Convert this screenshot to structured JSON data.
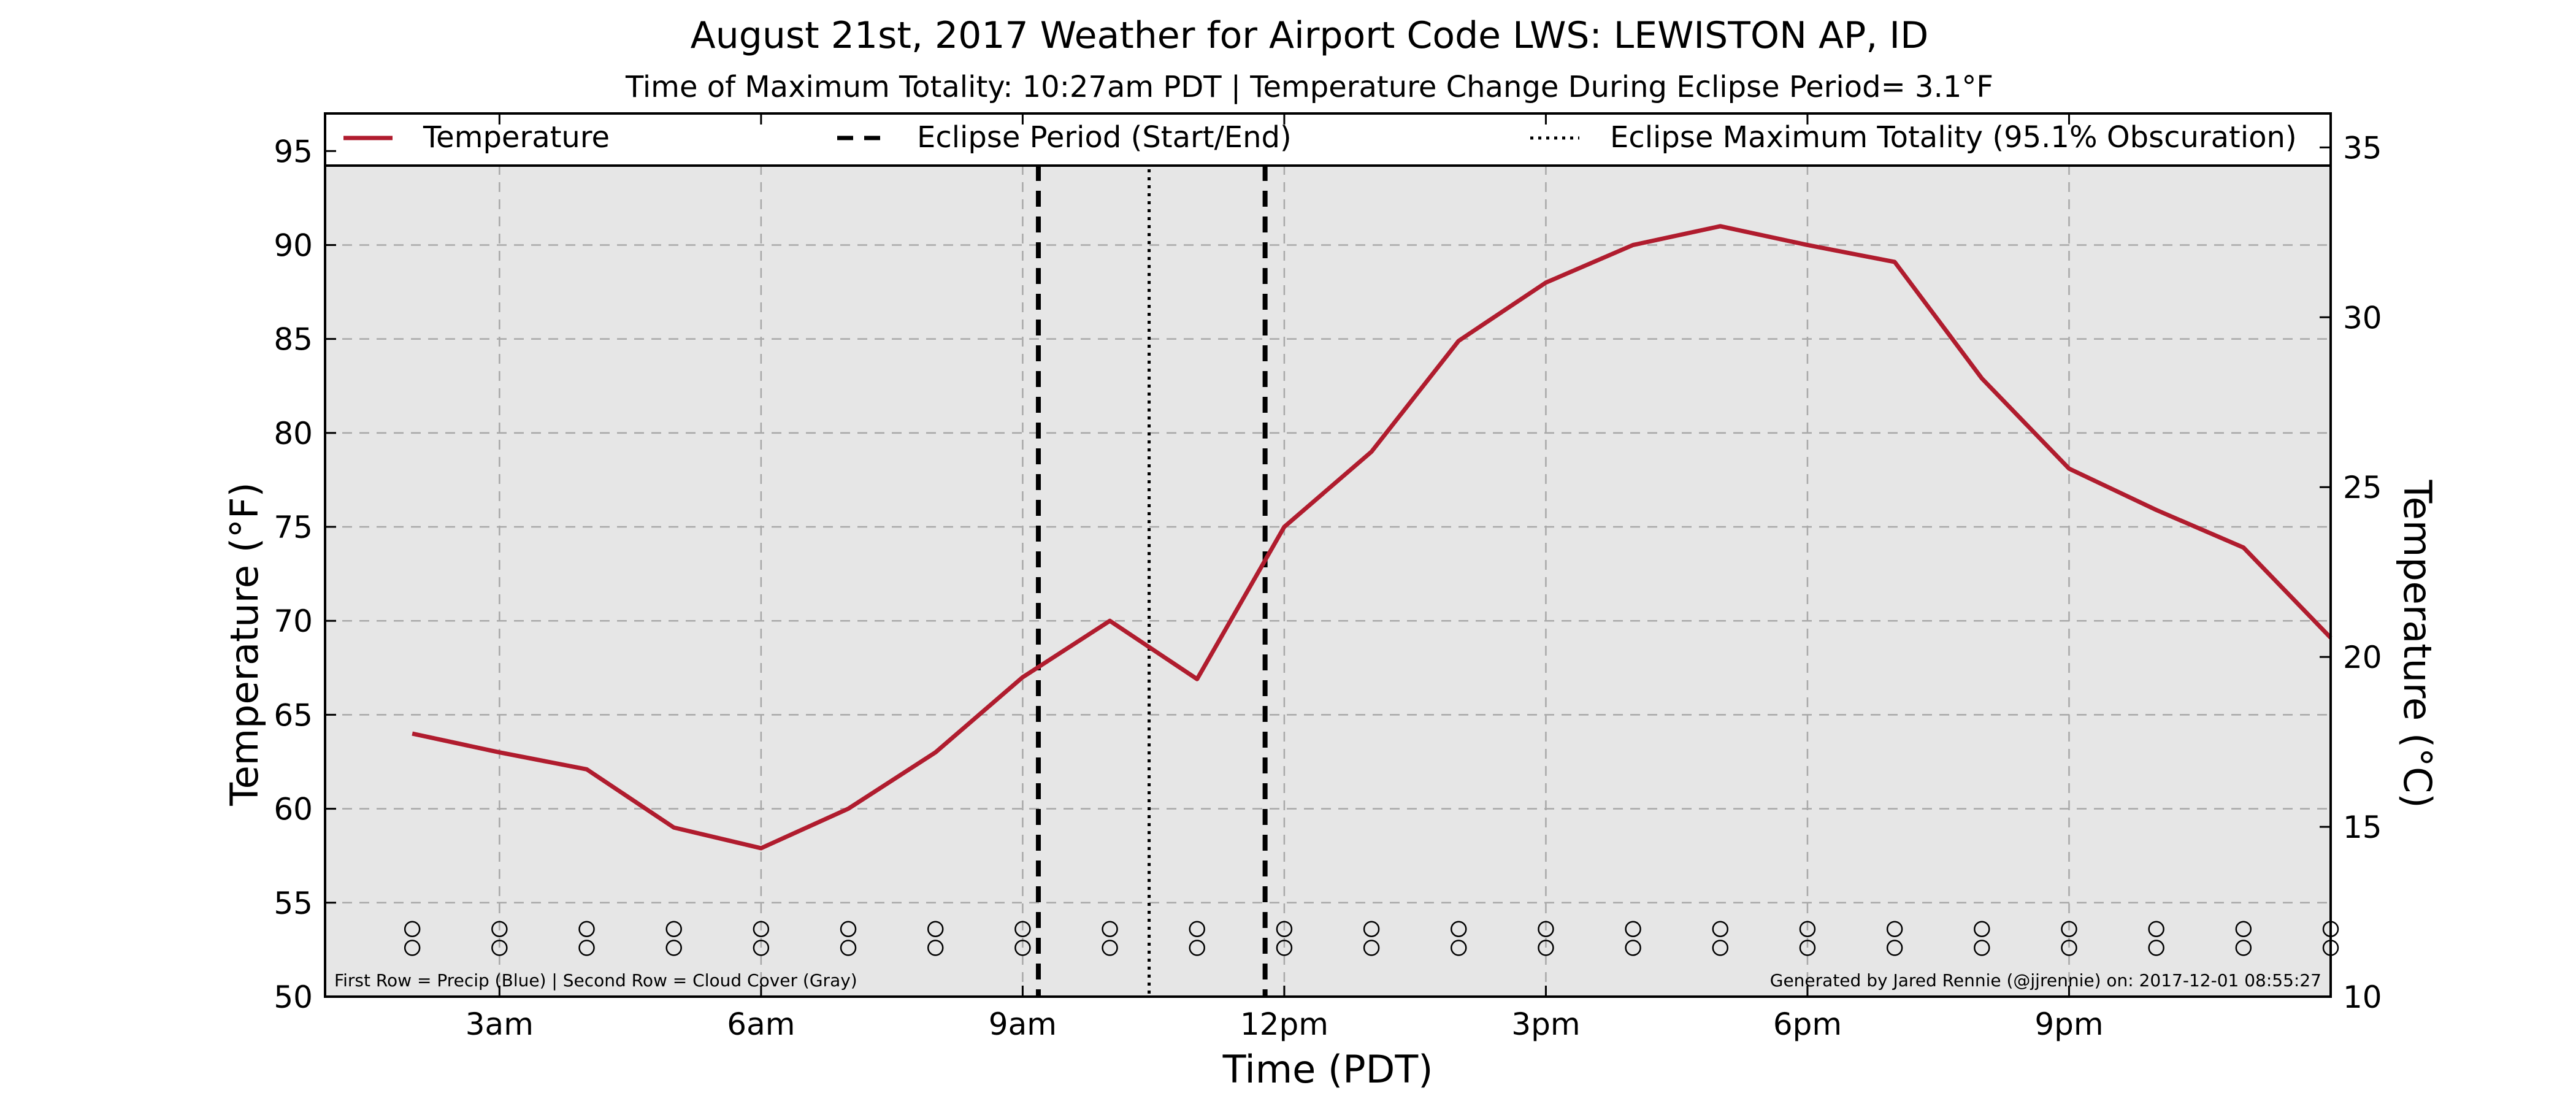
{
  "chart_data": {
    "type": "line",
    "title": "August 21st, 2017 Weather for Airport Code LWS: LEWISTON AP, ID",
    "subtitle": "Time of Maximum Totality: 10:27am PDT | Temperature Change During Eclipse Period= 3.1°F",
    "xlabel": "Time (PDT)",
    "ylabel": "Temperature (°F)",
    "ylabel_right": "Temperature (°C)",
    "xlim": [
      1,
      24
    ],
    "ylim": [
      50,
      97
    ],
    "ylim_right_c": [
      10,
      36
    ],
    "x_ticks": [
      {
        "x": 3,
        "label": "3am"
      },
      {
        "x": 6,
        "label": "6am"
      },
      {
        "x": 9,
        "label": "9am"
      },
      {
        "x": 12,
        "label": "12pm"
      },
      {
        "x": 15,
        "label": "3pm"
      },
      {
        "x": 18,
        "label": "6pm"
      },
      {
        "x": 21,
        "label": "9pm"
      }
    ],
    "y_ticks": [
      50,
      55,
      60,
      65,
      70,
      75,
      80,
      85,
      90,
      95
    ],
    "y_ticks_right": [
      10,
      15,
      20,
      25,
      30,
      35
    ],
    "grid": true,
    "legend_position": "top",
    "series": [
      {
        "name": "Temperature",
        "color": "#b01c2e",
        "x": [
          2,
          3,
          4,
          5,
          6,
          7,
          8,
          9,
          10,
          11,
          12,
          13,
          14,
          15,
          16,
          17,
          18,
          19,
          20,
          21,
          22,
          23,
          24
        ],
        "values": [
          64,
          63,
          62.1,
          59,
          57.9,
          60,
          63,
          67,
          70,
          66.9,
          75,
          79,
          84.9,
          88,
          90,
          91,
          90,
          89.1,
          82.9,
          78.1,
          75.9,
          73.9,
          69.1
        ]
      }
    ],
    "legend": [
      {
        "label": "Temperature",
        "style": "solid",
        "color": "#b01c2e"
      },
      {
        "label": "Eclipse Period (Start/End)",
        "style": "dashed",
        "color": "#000000"
      },
      {
        "label": "Eclipse Maximum Totality (95.1% Obscuration)",
        "style": "dotted",
        "color": "#000000"
      }
    ],
    "eclipse_lines": [
      {
        "x": 9.18,
        "style": "dashed"
      },
      {
        "x": 10.45,
        "style": "dotted"
      },
      {
        "x": 11.78,
        "style": "dashed"
      }
    ],
    "marker_rows": {
      "x": [
        2,
        3,
        4,
        5,
        6,
        7,
        8,
        9,
        10,
        11,
        12,
        13,
        14,
        15,
        16,
        17,
        18,
        19,
        20,
        21,
        22,
        23,
        24
      ],
      "precip_y": 53.6,
      "cloud_y": 52.6
    },
    "footnote_left": "First Row = Precip (Blue) | Second Row = Cloud Cover (Gray)",
    "footnote_right": "Generated by Jared Rennie (@jjrennie) on: 2017-12-01 08:55:27",
    "colors": {
      "plot_background": "#e6e6e6",
      "grid": "#a8a8a8",
      "axis": "#000000"
    }
  }
}
